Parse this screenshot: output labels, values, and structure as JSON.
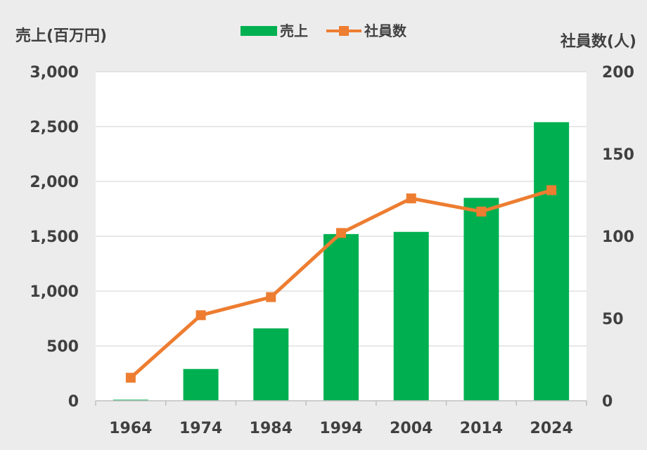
{
  "chart_data": {
    "type": "bar",
    "categories": [
      "1964",
      "1974",
      "1984",
      "1994",
      "2004",
      "2014",
      "2024"
    ],
    "series": [
      {
        "name": "売上",
        "type": "bar",
        "axis": "left",
        "values": [
          10,
          290,
          660,
          1520,
          1540,
          1850,
          2540
        ]
      },
      {
        "name": "社員数",
        "type": "line",
        "axis": "right",
        "values": [
          14,
          52,
          63,
          102,
          123,
          115,
          128
        ]
      }
    ],
    "ylabel_left": "売上(百万円)",
    "ylabel_right": "社員数(人)",
    "yticks_left": [
      "0",
      "500",
      "1,000",
      "1,500",
      "2,000",
      "2,500",
      "3,000"
    ],
    "yticks_right": [
      "0",
      "50",
      "100",
      "150",
      "200"
    ],
    "ylim_left": [
      0,
      3000
    ],
    "ylim_right": [
      0,
      200
    ],
    "grid": true,
    "legend_position": "top-center",
    "colors": {
      "bar": "#00b050",
      "line": "#ed7d31",
      "background": "#ececec",
      "plot": "#ffffff"
    }
  }
}
